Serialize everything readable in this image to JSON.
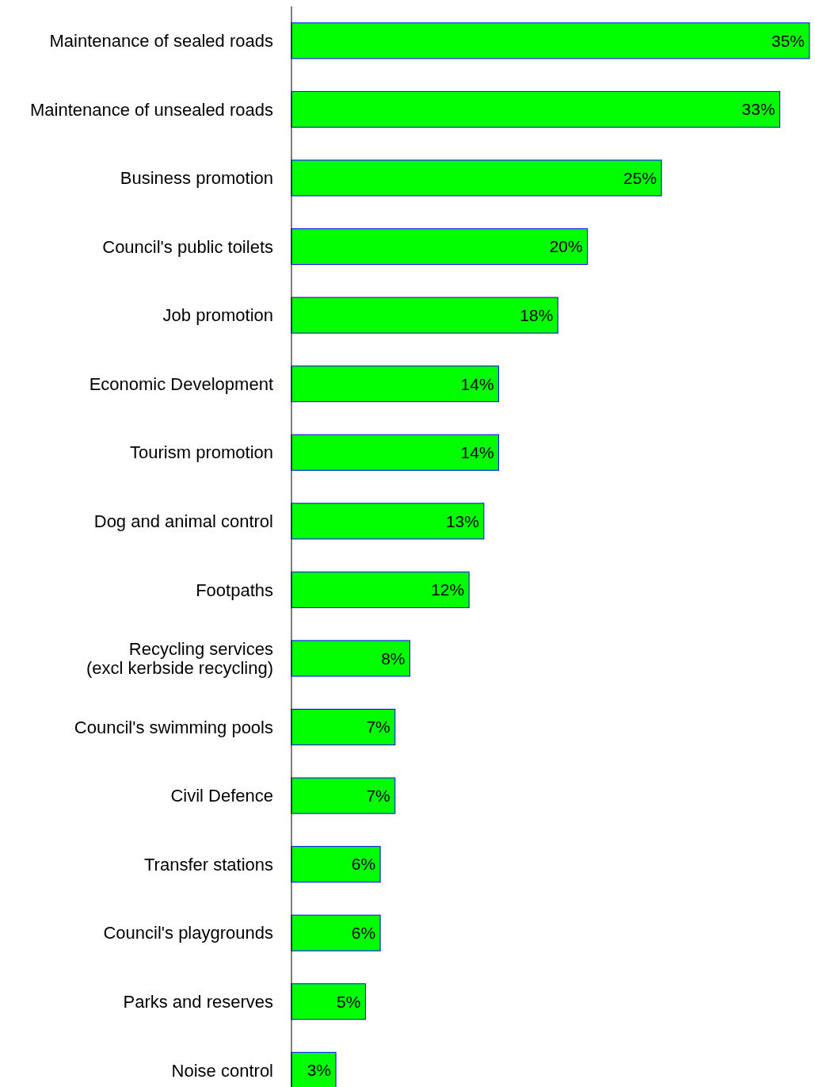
{
  "chart_data": {
    "type": "bar",
    "orientation": "horizontal",
    "color": "#00ff00",
    "categories": [
      "Maintenance of sealed roads",
      "Maintenance of unsealed roads",
      "Business promotion",
      "Council's public toilets",
      "Job promotion",
      "Economic Development",
      "Tourism promotion",
      "Dog and animal control",
      "Footpaths",
      "Recycling services\n(excl kerbside recycling)",
      "Council's swimming pools",
      "Civil Defence",
      "Transfer stations",
      "Council's playgrounds",
      "Parks and reserves",
      "Noise control"
    ],
    "values": [
      35,
      33,
      25,
      20,
      18,
      14,
      14,
      13,
      12,
      8,
      7,
      7,
      6,
      6,
      5,
      3
    ],
    "value_labels": [
      "35%",
      "33%",
      "25%",
      "20%",
      "18%",
      "14%",
      "14%",
      "13%",
      "12%",
      "8%",
      "7%",
      "7%",
      "6%",
      "6%",
      "5%",
      "3%"
    ]
  }
}
